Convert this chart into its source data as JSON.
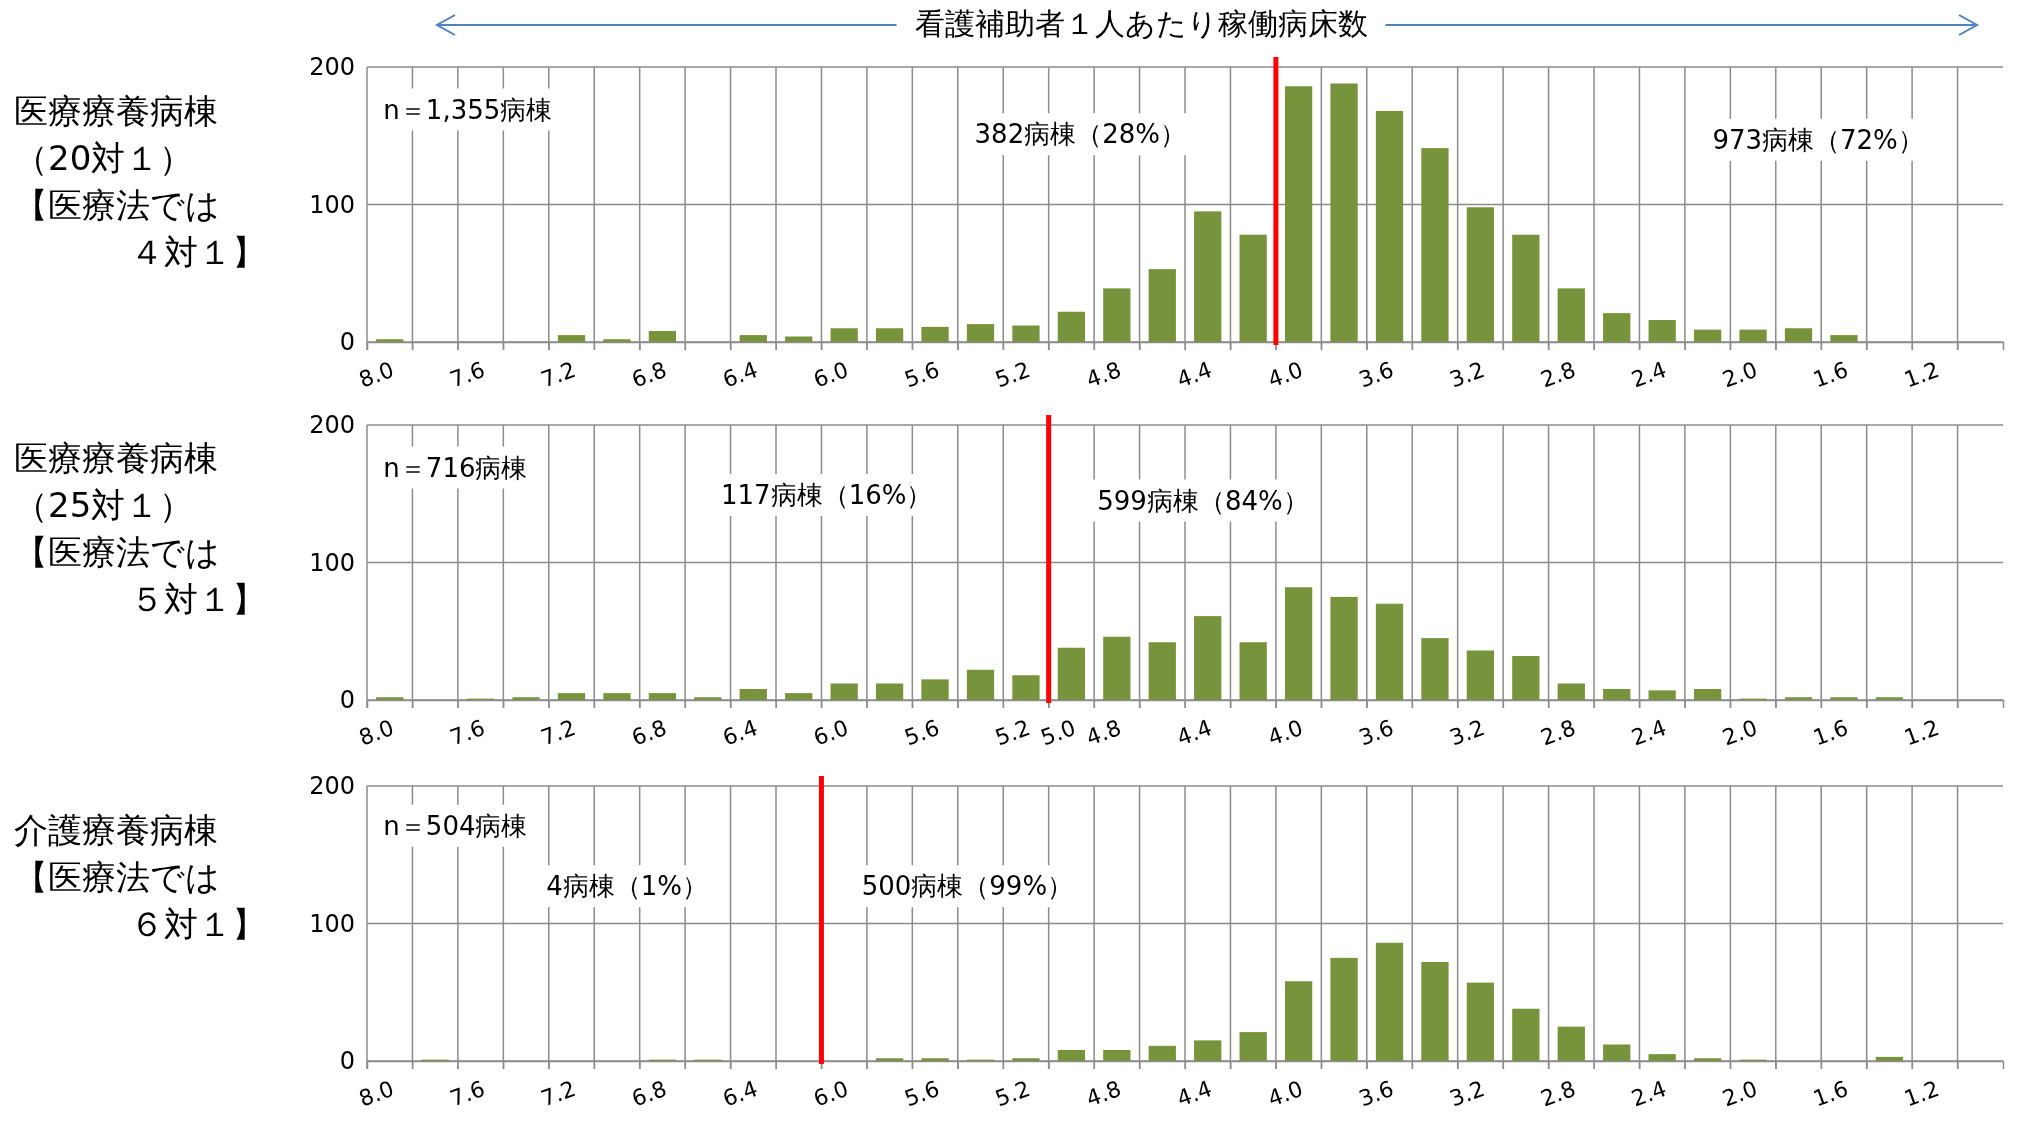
{
  "chart_data": [
    {
      "type": "histogram",
      "title": "医療療養病棟（20対１）【医療法では４対１】",
      "xlabel": "看護補助者１人あたり稼働病床数",
      "color": "#77933c",
      "bins": [
        8.0,
        7.8,
        7.6,
        7.4,
        7.2,
        7.0,
        6.8,
        6.6,
        6.4,
        6.2,
        6.0,
        5.8,
        5.6,
        5.4,
        5.2,
        5.0,
        4.8,
        4.6,
        4.4,
        4.2,
        4.0,
        3.8,
        3.6,
        3.4,
        3.2,
        3.0,
        2.8,
        2.6,
        2.4,
        2.2,
        2.0,
        1.8,
        1.6,
        1.4,
        1.2,
        1.0
      ],
      "values": [
        2,
        0,
        0,
        0,
        5,
        2,
        8,
        0,
        5,
        4,
        10,
        10,
        11,
        13,
        12,
        22,
        39,
        53,
        95,
        78,
        186,
        188,
        168,
        141,
        98,
        78,
        39,
        21,
        16,
        9,
        9,
        10,
        5,
        0,
        0
      ],
      "xlim": [
        8.0,
        0.8
      ],
      "ylim": [
        0,
        200
      ],
      "yticks": [
        0,
        100,
        200
      ],
      "grid": true,
      "xticks": [
        {
          "value": 8,
          "label": "8.0"
        },
        {
          "value": 7.8,
          "label": null
        },
        {
          "value": 7.6,
          "label": "7.6"
        },
        {
          "value": 7.4,
          "label": null
        },
        {
          "value": 7.2,
          "label": "7.2"
        },
        {
          "value": 7,
          "label": null
        },
        {
          "value": 6.8,
          "label": "6.8"
        },
        {
          "value": 6.6,
          "label": null
        },
        {
          "value": 6.4,
          "label": "6.4"
        },
        {
          "value": 6.2,
          "label": null
        },
        {
          "value": 6,
          "label": "6.0"
        },
        {
          "value": 5.8,
          "label": null
        },
        {
          "value": 5.6,
          "label": "5.6"
        },
        {
          "value": 5.4,
          "label": null
        },
        {
          "value": 5.2,
          "label": "5.2"
        },
        {
          "value": 5,
          "label": null
        },
        {
          "value": 4.8,
          "label": "4.8"
        },
        {
          "value": 4.6,
          "label": null
        },
        {
          "value": 4.4,
          "label": "4.4"
        },
        {
          "value": 4.2,
          "label": null
        },
        {
          "value": 4,
          "label": "4.0"
        },
        {
          "value": 3.8,
          "label": null
        },
        {
          "value": 3.6,
          "label": "3.6"
        },
        {
          "value": 3.4,
          "label": null
        },
        {
          "value": 3.2,
          "label": "3.2"
        },
        {
          "value": 3,
          "label": null
        },
        {
          "value": 2.8,
          "label": "2.8"
        },
        {
          "value": 2.6,
          "label": null
        },
        {
          "value": 2.4,
          "label": "2.4"
        },
        {
          "value": 2.2,
          "label": null
        },
        {
          "value": 2,
          "label": "2.0"
        },
        {
          "value": 1.8,
          "label": null
        },
        {
          "value": 1.6,
          "label": "1.6"
        },
        {
          "value": 1.4,
          "label": null
        },
        {
          "value": 1.2,
          "label": "1.2"
        },
        {
          "value": 1,
          "label": null
        }
      ],
      "ref_lines": [
        {
          "axis": "x",
          "value": 4.0,
          "color": "#ff0000"
        }
      ],
      "annotations": [
        "n＝1,355病棟",
        "382病棟（28%）",
        "973病棟（72%）"
      ]
    },
    {
      "type": "histogram",
      "title": "医療療養病棟（25対１）【医療法では５対１】",
      "color": "#77933c",
      "bins": [
        8.0,
        7.8,
        7.6,
        7.4,
        7.2,
        7.0,
        6.8,
        6.6,
        6.4,
        6.2,
        6.0,
        5.8,
        5.6,
        5.4,
        5.2,
        5.0,
        4.8,
        4.6,
        4.4,
        4.2,
        4.0,
        3.8,
        3.6,
        3.4,
        3.2,
        3.0,
        2.8,
        2.6,
        2.4,
        2.2,
        2.0,
        1.8,
        1.6,
        1.4,
        1.2,
        1.0
      ],
      "values": [
        2,
        0,
        1,
        2,
        5,
        5,
        5,
        2,
        8,
        5,
        12,
        12,
        15,
        22,
        18,
        38,
        46,
        42,
        61,
        42,
        82,
        75,
        70,
        45,
        36,
        32,
        12,
        8,
        7,
        8,
        1,
        2,
        2,
        2,
        0
      ],
      "xlim": [
        8.0,
        0.8
      ],
      "ylim": [
        0,
        200
      ],
      "yticks": [
        0,
        100,
        200
      ],
      "grid": true,
      "xticks": [
        {
          "value": 8,
          "label": "8.0"
        },
        {
          "value": 7.8,
          "label": null
        },
        {
          "value": 7.6,
          "label": "7.6"
        },
        {
          "value": 7.4,
          "label": null
        },
        {
          "value": 7.2,
          "label": "7.2"
        },
        {
          "value": 7,
          "label": null
        },
        {
          "value": 6.8,
          "label": "6.8"
        },
        {
          "value": 6.6,
          "label": null
        },
        {
          "value": 6.4,
          "label": "6.4"
        },
        {
          "value": 6.2,
          "label": null
        },
        {
          "value": 6,
          "label": "6.0"
        },
        {
          "value": 5.8,
          "label": null
        },
        {
          "value": 5.6,
          "label": "5.6"
        },
        {
          "value": 5.4,
          "label": null
        },
        {
          "value": 5.2,
          "label": "5.2"
        },
        {
          "value": 5,
          "label": "5.0"
        },
        {
          "value": 4.8,
          "label": "4.8"
        },
        {
          "value": 4.6,
          "label": null
        },
        {
          "value": 4.4,
          "label": "4.4"
        },
        {
          "value": 4.2,
          "label": null
        },
        {
          "value": 4,
          "label": "4.0"
        },
        {
          "value": 3.8,
          "label": null
        },
        {
          "value": 3.6,
          "label": "3.6"
        },
        {
          "value": 3.4,
          "label": null
        },
        {
          "value": 3.2,
          "label": "3.2"
        },
        {
          "value": 3,
          "label": null
        },
        {
          "value": 2.8,
          "label": "2.8"
        },
        {
          "value": 2.6,
          "label": null
        },
        {
          "value": 2.4,
          "label": "2.4"
        },
        {
          "value": 2.2,
          "label": null
        },
        {
          "value": 2,
          "label": "2.0"
        },
        {
          "value": 1.8,
          "label": null
        },
        {
          "value": 1.6,
          "label": "1.6"
        },
        {
          "value": 1.4,
          "label": null
        },
        {
          "value": 1.2,
          "label": "1.2"
        },
        {
          "value": 1,
          "label": null
        }
      ],
      "ref_lines": [
        {
          "axis": "x",
          "value": 5.0,
          "color": "#ff0000"
        }
      ],
      "annotations": [
        "n＝716病棟",
        "117病棟（16%）",
        "599病棟（84%）"
      ]
    },
    {
      "type": "histogram",
      "title": "介護療養病棟【医療法では６対１】",
      "color": "#77933c",
      "bins": [
        8.0,
        7.8,
        7.6,
        7.4,
        7.2,
        7.0,
        6.8,
        6.6,
        6.4,
        6.2,
        6.0,
        5.8,
        5.6,
        5.4,
        5.2,
        5.0,
        4.8,
        4.6,
        4.4,
        4.2,
        4.0,
        3.8,
        3.6,
        3.4,
        3.2,
        3.0,
        2.8,
        2.6,
        2.4,
        2.2,
        2.0,
        1.8,
        1.6,
        1.4,
        1.2,
        1.0
      ],
      "values": [
        0,
        1,
        0,
        0,
        0,
        0,
        1,
        1,
        0,
        0,
        0,
        2,
        2,
        1,
        2,
        8,
        8,
        11,
        15,
        21,
        58,
        75,
        86,
        72,
        57,
        38,
        25,
        12,
        5,
        2,
        1,
        0,
        0,
        3,
        0
      ],
      "xlim": [
        8.0,
        0.8
      ],
      "ylim": [
        0,
        200
      ],
      "yticks": [
        0,
        100,
        200
      ],
      "grid": true,
      "xticks": [
        {
          "value": 8,
          "label": "8.0"
        },
        {
          "value": 7.8,
          "label": null
        },
        {
          "value": 7.6,
          "label": "7.6"
        },
        {
          "value": 7.4,
          "label": null
        },
        {
          "value": 7.2,
          "label": "7.2"
        },
        {
          "value": 7,
          "label": null
        },
        {
          "value": 6.8,
          "label": "6.8"
        },
        {
          "value": 6.6,
          "label": null
        },
        {
          "value": 6.4,
          "label": "6.4"
        },
        {
          "value": 6.2,
          "label": null
        },
        {
          "value": 6,
          "label": "6.0"
        },
        {
          "value": 5.8,
          "label": null
        },
        {
          "value": 5.6,
          "label": "5.6"
        },
        {
          "value": 5.4,
          "label": null
        },
        {
          "value": 5.2,
          "label": "5.2"
        },
        {
          "value": 5,
          "label": null
        },
        {
          "value": 4.8,
          "label": "4.8"
        },
        {
          "value": 4.6,
          "label": null
        },
        {
          "value": 4.4,
          "label": "4.4"
        },
        {
          "value": 4.2,
          "label": null
        },
        {
          "value": 4,
          "label": "4.0"
        },
        {
          "value": 3.8,
          "label": null
        },
        {
          "value": 3.6,
          "label": "3.6"
        },
        {
          "value": 3.4,
          "label": null
        },
        {
          "value": 3.2,
          "label": "3.2"
        },
        {
          "value": 3,
          "label": null
        },
        {
          "value": 2.8,
          "label": "2.8"
        },
        {
          "value": 2.6,
          "label": null
        },
        {
          "value": 2.4,
          "label": "2.4"
        },
        {
          "value": 2.2,
          "label": null
        },
        {
          "value": 2,
          "label": "2.0"
        },
        {
          "value": 1.8,
          "label": null
        },
        {
          "value": 1.6,
          "label": "1.6"
        },
        {
          "value": 1.4,
          "label": null
        },
        {
          "value": 1.2,
          "label": "1.2"
        },
        {
          "value": 1,
          "label": null
        }
      ],
      "ref_lines": [
        {
          "axis": "x",
          "value": 6.0,
          "color": "#ff0000"
        }
      ],
      "annotations": [
        "n＝504病棟",
        "4病棟（1%）",
        "500病棟（99%）"
      ]
    }
  ]
}
